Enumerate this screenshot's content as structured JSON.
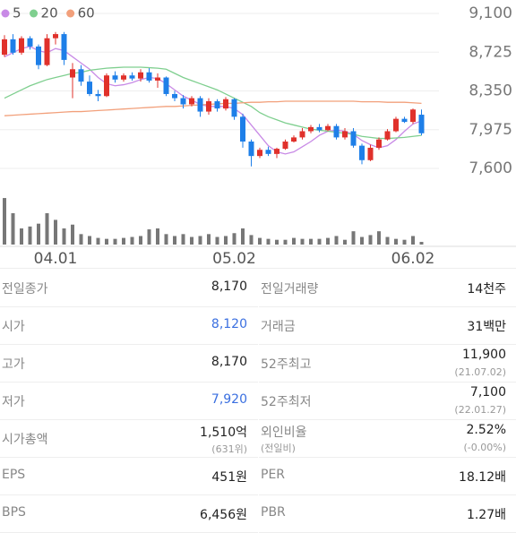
{
  "chart_data": {
    "type": "candlestick",
    "legend": [
      "5",
      "20",
      "60"
    ],
    "categories": [
      null,
      null,
      null,
      null,
      null,
      null,
      "04.01",
      null,
      null,
      null,
      null,
      null,
      null,
      null,
      null,
      null,
      null,
      null,
      null,
      null,
      null,
      null,
      null,
      null,
      null,
      null,
      null,
      "05.02",
      null,
      null,
      null,
      null,
      null,
      null,
      null,
      null,
      null,
      null,
      null,
      null,
      null,
      null,
      null,
      null,
      null,
      null,
      null,
      null,
      "06.02",
      null
    ],
    "open": [
      8700,
      8850,
      8720,
      8860,
      8780,
      8600,
      8860,
      8900,
      8480,
      8560,
      8440,
      8320,
      8300,
      8500,
      8460,
      8500,
      8470,
      8530,
      8450,
      8480,
      8320,
      8280,
      8220,
      8280,
      8150,
      8250,
      8180,
      8270,
      8100,
      7860,
      7720,
      7780,
      7740,
      7790,
      7860,
      7900,
      7960,
      8000,
      7970,
      8010,
      7900,
      7960,
      7820,
      7680,
      7800,
      7880,
      7960,
      8080,
      8050,
      8120
    ],
    "high": [
      8890,
      8900,
      8880,
      8880,
      8800,
      8900,
      8920,
      8920,
      8620,
      8600,
      8500,
      8360,
      8520,
      8540,
      8520,
      8530,
      8560,
      8570,
      8520,
      8490,
      8350,
      8310,
      8300,
      8300,
      8280,
      8270,
      8290,
      8280,
      8130,
      7880,
      7800,
      7810,
      7800,
      7880,
      7920,
      7990,
      8020,
      8030,
      8030,
      8030,
      7990,
      7990,
      7840,
      7830,
      7900,
      7980,
      8100,
      8100,
      8180,
      8170
    ],
    "low": [
      8680,
      8700,
      8700,
      8750,
      8560,
      8590,
      8800,
      8600,
      8280,
      8400,
      8300,
      8250,
      8290,
      8430,
      8440,
      8450,
      8440,
      8430,
      8380,
      8300,
      8250,
      8180,
      8200,
      8100,
      8120,
      8150,
      8160,
      8070,
      7800,
      7620,
      7700,
      7720,
      7700,
      7780,
      7850,
      7880,
      7940,
      7950,
      7960,
      7880,
      7880,
      7800,
      7640,
      7670,
      7780,
      7870,
      7950,
      8040,
      8030,
      7920
    ],
    "close": [
      8850,
      8720,
      8860,
      8780,
      8600,
      8860,
      8900,
      8650,
      8560,
      8440,
      8320,
      8300,
      8500,
      8460,
      8500,
      8470,
      8530,
      8450,
      8480,
      8320,
      8280,
      8220,
      8280,
      8150,
      8250,
      8180,
      8270,
      8100,
      7860,
      7720,
      7780,
      7740,
      7790,
      7860,
      7900,
      7960,
      8000,
      7970,
      8010,
      7900,
      7960,
      7820,
      7680,
      7800,
      7880,
      7960,
      8080,
      8050,
      8170,
      7940
    ],
    "up_color": "#e0312b",
    "down_color": "#1e7fe8",
    "series": [
      {
        "name": "5",
        "color": "#c88ae6",
        "values": [
          8680,
          8720,
          8760,
          8780,
          8740,
          8720,
          8760,
          8740,
          8680,
          8620,
          8560,
          8480,
          8420,
          8400,
          8410,
          8430,
          8460,
          8480,
          8470,
          8420,
          8360,
          8300,
          8260,
          8220,
          8200,
          8200,
          8200,
          8180,
          8120,
          8020,
          7920,
          7820,
          7760,
          7740,
          7760,
          7810,
          7860,
          7920,
          7960,
          7970,
          7960,
          7930,
          7870,
          7830,
          7800,
          7820,
          7880,
          7960,
          8030,
          8060
        ]
      },
      {
        "name": "20",
        "color": "#7fcf8f",
        "values": [
          8280,
          8320,
          8360,
          8400,
          8430,
          8460,
          8480,
          8500,
          8520,
          8530,
          8550,
          8560,
          8570,
          8575,
          8580,
          8580,
          8580,
          8575,
          8570,
          8560,
          8520,
          8480,
          8450,
          8420,
          8390,
          8360,
          8320,
          8280,
          8240,
          8200,
          8140,
          8100,
          8070,
          8040,
          8020,
          8000,
          7980,
          7970,
          7960,
          7950,
          7940,
          7930,
          7910,
          7900,
          7890,
          7890,
          7895,
          7900,
          7910,
          7920
        ]
      },
      {
        "name": "60",
        "color": "#f2a07b",
        "values": [
          8110,
          8115,
          8120,
          8125,
          8130,
          8135,
          8140,
          8145,
          8150,
          8150,
          8155,
          8160,
          8165,
          8170,
          8175,
          8180,
          8185,
          8190,
          8195,
          8200,
          8200,
          8205,
          8210,
          8215,
          8220,
          8225,
          8230,
          8230,
          8235,
          8240,
          8240,
          8245,
          8245,
          8250,
          8250,
          8250,
          8250,
          8250,
          8250,
          8250,
          8250,
          8250,
          8245,
          8245,
          8245,
          8240,
          8240,
          8240,
          8235,
          8230
        ]
      }
    ],
    "volume": [
      245,
      165,
      85,
      95,
      110,
      165,
      130,
      85,
      105,
      55,
      45,
      35,
      30,
      30,
      35,
      40,
      45,
      80,
      85,
      55,
      45,
      55,
      40,
      45,
      55,
      40,
      45,
      60,
      85,
      50,
      35,
      30,
      25,
      25,
      35,
      30,
      30,
      30,
      35,
      45,
      25,
      70,
      40,
      50,
      70,
      40,
      30,
      25,
      45,
      14
    ],
    "volume_color": "#777777",
    "vlim": [
      0,
      250
    ],
    "ylim": [
      7600,
      9100
    ],
    "yticks": [
      {
        "value": 7600,
        "label": "7,600"
      },
      {
        "value": 7975,
        "label": "7,975"
      },
      {
        "value": 8350,
        "label": "8,350"
      },
      {
        "value": 8725,
        "label": "8,725"
      },
      {
        "value": 9100,
        "label": "9,100"
      }
    ],
    "grid": true
  },
  "table": {
    "left": [
      {
        "label": "전일종가",
        "value": "8,170"
      },
      {
        "label": "시가",
        "value": "8,120",
        "color": "#3a6fe0"
      },
      {
        "label": "고가",
        "value": "8,170"
      },
      {
        "label": "저가",
        "value": "7,920",
        "color": "#3a6fe0"
      },
      {
        "label": "시가총액",
        "value": "1,510억",
        "value_sub": "(631위)"
      },
      {
        "label": "EPS",
        "value": "451원"
      },
      {
        "label": "BPS",
        "value": "6,456원"
      }
    ],
    "right": [
      {
        "label": "전일거래량",
        "value": "14천주"
      },
      {
        "label": "거래금",
        "value": "31백만"
      },
      {
        "label": "52주최고",
        "value": "11,900",
        "value_sub": "(21.07.02)"
      },
      {
        "label": "52주최저",
        "value": "7,100",
        "value_sub": "(22.01.27)"
      },
      {
        "label": "외인비율",
        "label_sub": "(전일비)",
        "value": "2.52%",
        "value_sub": "(-0.00%)"
      },
      {
        "label": "PER",
        "value": "18.12배"
      },
      {
        "label": "PBR",
        "value": "1.27배"
      }
    ]
  }
}
